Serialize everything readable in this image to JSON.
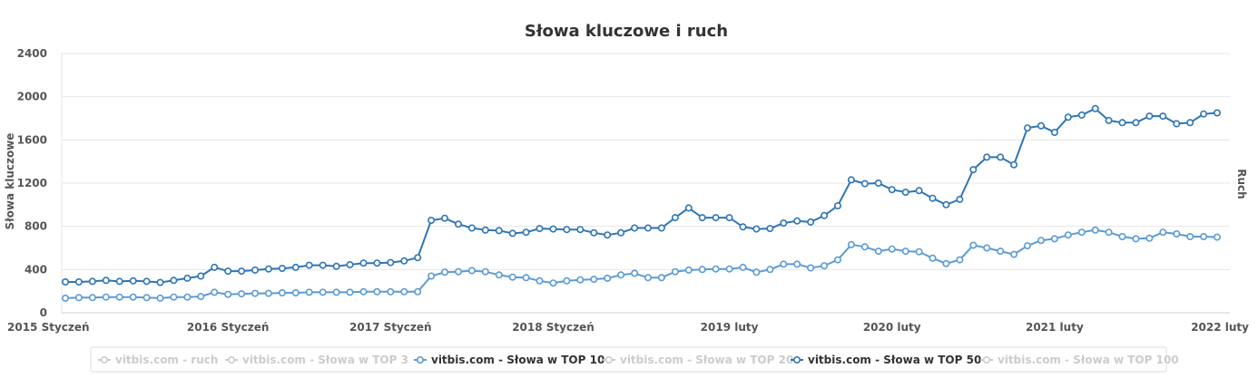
{
  "chart_data": {
    "type": "line",
    "title": "Słowa kluczowe i ruch",
    "ylabel": "Słowa kluczowe",
    "ylabel_right": "Ruch",
    "ylim": [
      0,
      2400
    ],
    "yticks": [
      "0",
      "400",
      "800",
      "1200",
      "1600",
      "2000",
      "2400"
    ],
    "x_tick_labels": [
      "2015 Styczeń",
      "2016 Styczeń",
      "2017 Styczeń",
      "2018 Styczeń",
      "2019 luty",
      "2020 luty",
      "2021 luty",
      "2022 luty"
    ],
    "x_tick_index": [
      0,
      12,
      24,
      36,
      49,
      61,
      73,
      85
    ],
    "grid": true,
    "legend_position": "bottom-center",
    "legend": [
      {
        "label": "vitbis.com - ruch",
        "active": false
      },
      {
        "label": "vitbis.com - Słowa w TOP 3",
        "active": false
      },
      {
        "label": "vitbis.com - Słowa w TOP 10",
        "active": true,
        "color": "#5b9bd5"
      },
      {
        "label": "vitbis.com - Słowa w TOP 20",
        "active": false
      },
      {
        "label": "vitbis.com - Słowa w TOP 50",
        "active": true,
        "color": "#2e75b6"
      },
      {
        "label": "vitbis.com - Słowa w TOP 100",
        "active": false
      }
    ],
    "series": [
      {
        "name": "vitbis.com - Słowa w TOP 50",
        "color": "#2e75b6",
        "values": [
          285,
          285,
          290,
          300,
          290,
          295,
          290,
          280,
          300,
          320,
          340,
          420,
          385,
          385,
          395,
          405,
          410,
          420,
          440,
          440,
          430,
          445,
          460,
          460,
          465,
          480,
          510,
          855,
          875,
          820,
          785,
          765,
          760,
          735,
          745,
          780,
          775,
          770,
          770,
          740,
          720,
          740,
          785,
          785,
          785,
          880,
          970,
          880,
          880,
          880,
          795,
          775,
          780,
          830,
          850,
          840,
          900,
          990,
          1230,
          1195,
          1200,
          1140,
          1115,
          1130,
          1060,
          1000,
          1050,
          1325,
          1440,
          1440,
          1370,
          1710,
          1730,
          1670,
          1810,
          1830,
          1890,
          1780,
          1760,
          1760,
          1820,
          1820,
          1750,
          1760,
          1840,
          1850
        ]
      },
      {
        "name": "vitbis.com - Słowa w TOP 10",
        "color": "#5b9bd5",
        "values": [
          135,
          140,
          140,
          145,
          145,
          145,
          140,
          135,
          145,
          145,
          150,
          190,
          170,
          175,
          180,
          180,
          185,
          185,
          190,
          190,
          190,
          190,
          195,
          195,
          195,
          195,
          195,
          340,
          375,
          380,
          390,
          380,
          350,
          330,
          325,
          295,
          275,
          295,
          305,
          310,
          320,
          350,
          365,
          325,
          325,
          380,
          395,
          400,
          405,
          405,
          420,
          375,
          400,
          450,
          450,
          415,
          435,
          490,
          630,
          610,
          570,
          590,
          570,
          565,
          505,
          455,
          490,
          625,
          600,
          570,
          540,
          620,
          670,
          685,
          720,
          745,
          765,
          745,
          705,
          685,
          690,
          745,
          730,
          705,
          705,
          700
        ]
      }
    ]
  }
}
